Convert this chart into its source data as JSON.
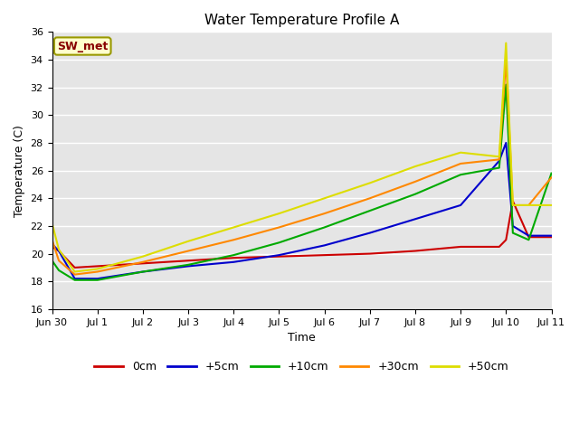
{
  "title": "Water Temperature Profile A",
  "xlabel": "Time",
  "ylabel": "Temperature (C)",
  "ylim": [
    16,
    36
  ],
  "xlim_days": [
    0,
    11
  ],
  "plot_bg": "#e5e5e5",
  "fig_bg": "#ffffff",
  "annotation_text": "SW_met",
  "annotation_bg": "#ffffcc",
  "annotation_border": "#999900",
  "annotation_text_color": "#880000",
  "series": {
    "0cm": {
      "color": "#cc0000",
      "data_x": [
        0.0,
        0.15,
        0.5,
        1.0,
        2.0,
        3.0,
        4.0,
        5.0,
        6.0,
        7.0,
        8.0,
        9.0,
        9.85,
        10.0,
        10.15,
        10.5,
        11.0
      ],
      "data_y": [
        20.5,
        20.2,
        19.0,
        19.1,
        19.3,
        19.5,
        19.7,
        19.8,
        19.9,
        20.0,
        20.2,
        20.5,
        20.5,
        21.0,
        23.8,
        21.2,
        21.2
      ]
    },
    "+5cm": {
      "color": "#0000cc",
      "data_x": [
        0.0,
        0.15,
        0.5,
        1.0,
        2.0,
        3.0,
        4.0,
        5.0,
        6.0,
        7.0,
        8.0,
        9.0,
        9.85,
        10.0,
        10.15,
        10.5,
        11.0
      ],
      "data_y": [
        20.7,
        20.2,
        18.2,
        18.2,
        18.7,
        19.1,
        19.4,
        19.9,
        20.6,
        21.5,
        22.5,
        23.5,
        26.7,
        28.0,
        22.0,
        21.3,
        21.3
      ]
    },
    "+10cm": {
      "color": "#00aa00",
      "data_x": [
        0.0,
        0.15,
        0.5,
        1.0,
        2.0,
        3.0,
        4.0,
        5.0,
        6.0,
        7.0,
        8.0,
        9.0,
        9.85,
        10.0,
        10.15,
        10.5,
        11.0
      ],
      "data_y": [
        19.5,
        18.8,
        18.1,
        18.1,
        18.7,
        19.2,
        19.9,
        20.8,
        21.9,
        23.1,
        24.3,
        25.7,
        26.2,
        32.2,
        21.5,
        21.0,
        25.8
      ]
    },
    "+30cm": {
      "color": "#ff8800",
      "data_x": [
        0.0,
        0.15,
        0.5,
        1.0,
        2.0,
        3.0,
        4.0,
        5.0,
        6.0,
        7.0,
        8.0,
        9.0,
        9.85,
        10.0,
        10.15,
        10.5,
        11.0
      ],
      "data_y": [
        21.0,
        19.5,
        18.5,
        18.7,
        19.4,
        20.2,
        21.0,
        21.9,
        22.9,
        24.0,
        25.2,
        26.5,
        26.8,
        34.0,
        23.5,
        23.5,
        25.5
      ]
    },
    "+50cm": {
      "color": "#dddd00",
      "data_x": [
        0.0,
        0.15,
        0.5,
        1.0,
        2.0,
        3.0,
        4.0,
        5.0,
        6.0,
        7.0,
        8.0,
        9.0,
        9.85,
        10.0,
        10.15,
        10.5,
        11.0
      ],
      "data_y": [
        22.2,
        20.3,
        18.7,
        18.9,
        19.8,
        20.9,
        21.9,
        22.9,
        24.0,
        25.1,
        26.3,
        27.3,
        27.0,
        35.2,
        23.5,
        23.5,
        23.5
      ]
    }
  },
  "xtick_positions": [
    0,
    1,
    2,
    3,
    4,
    5,
    6,
    7,
    8,
    9,
    10,
    11
  ],
  "xtick_labels": [
    "Jun 30",
    "Jul 1",
    "Jul 2",
    "Jul 3",
    "Jul 4",
    "Jul 5",
    "Jul 6",
    "Jul 7",
    "Jul 8",
    "Jul 9",
    "Jul 10",
    "Jul 11"
  ],
  "ytick_positions": [
    16,
    18,
    20,
    22,
    24,
    26,
    28,
    30,
    32,
    34,
    36
  ],
  "legend_order": [
    "0cm",
    "+5cm",
    "+10cm",
    "+30cm",
    "+50cm"
  ]
}
